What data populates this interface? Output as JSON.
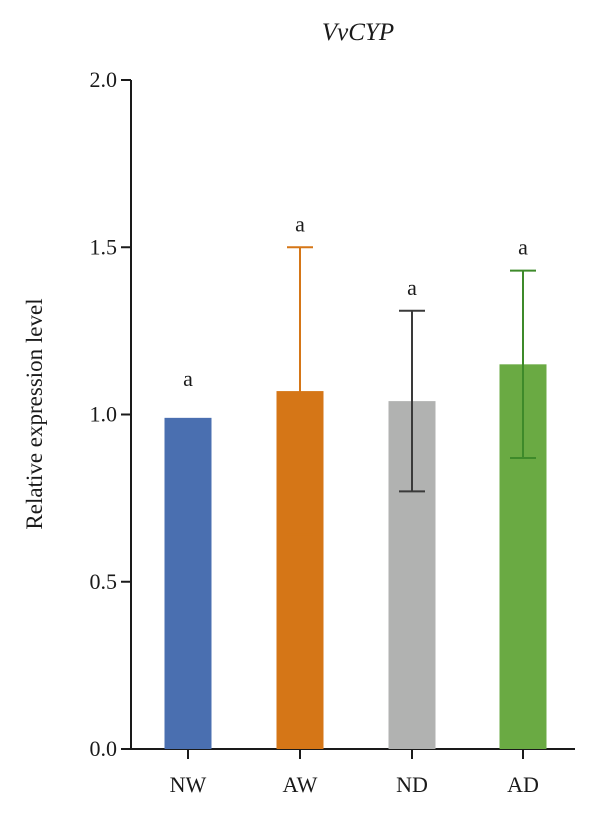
{
  "chart_data": {
    "type": "bar",
    "title": "VvCYP",
    "xlabel": "",
    "ylabel": "Relative expression level",
    "ylim": [
      0,
      2.0
    ],
    "yticks": [
      "0.0",
      "0.5",
      "1.0",
      "1.5",
      "2.0"
    ],
    "grid": false,
    "categories": [
      "NW",
      "AW",
      "ND",
      "AD"
    ],
    "values": [
      0.99,
      1.07,
      1.04,
      1.15
    ],
    "error": [
      0,
      0.43,
      0.27,
      0.28
    ],
    "significance": [
      "a",
      "a",
      "a",
      "a"
    ],
    "colors": [
      "#4a6fb0",
      "#d57617",
      "#b1b2b1",
      "#6aaa43"
    ],
    "error_colors": [
      "#4a6fb0",
      "#d57617",
      "#3a3a3a",
      "#3e8a2a"
    ]
  }
}
